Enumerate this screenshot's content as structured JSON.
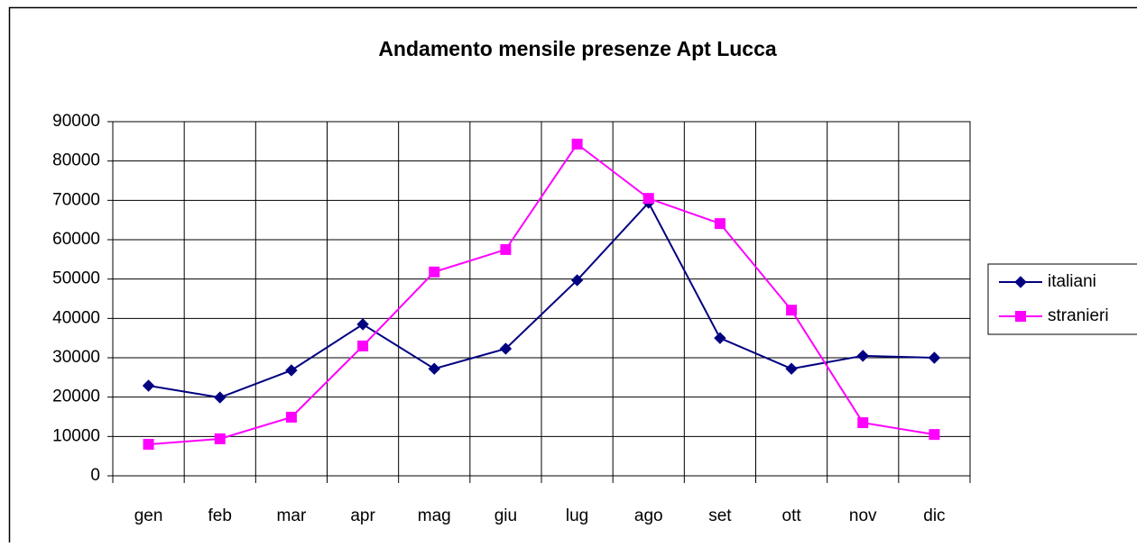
{
  "chart_data": {
    "type": "line",
    "title": "Andamento mensile presenze Apt Lucca",
    "categories": [
      "gen",
      "feb",
      "mar",
      "apr",
      "mag",
      "giu",
      "lug",
      "ago",
      "set",
      "ott",
      "nov",
      "dic"
    ],
    "series": [
      {
        "name": "italiani",
        "color": "#000080",
        "marker": "diamond",
        "values": [
          22900,
          19900,
          26800,
          38500,
          27200,
          32300,
          49700,
          69400,
          35000,
          27200,
          30500,
          30000
        ]
      },
      {
        "name": "stranieri",
        "color": "#ff00ff",
        "marker": "square",
        "values": [
          8000,
          9400,
          14900,
          33000,
          51800,
          57500,
          84300,
          70500,
          64100,
          42100,
          13500,
          10500
        ]
      }
    ],
    "ylim": [
      0,
      90000
    ],
    "yticks": [
      0,
      10000,
      20000,
      30000,
      40000,
      50000,
      60000,
      70000,
      80000,
      90000
    ],
    "grid": true,
    "legend": "right"
  }
}
